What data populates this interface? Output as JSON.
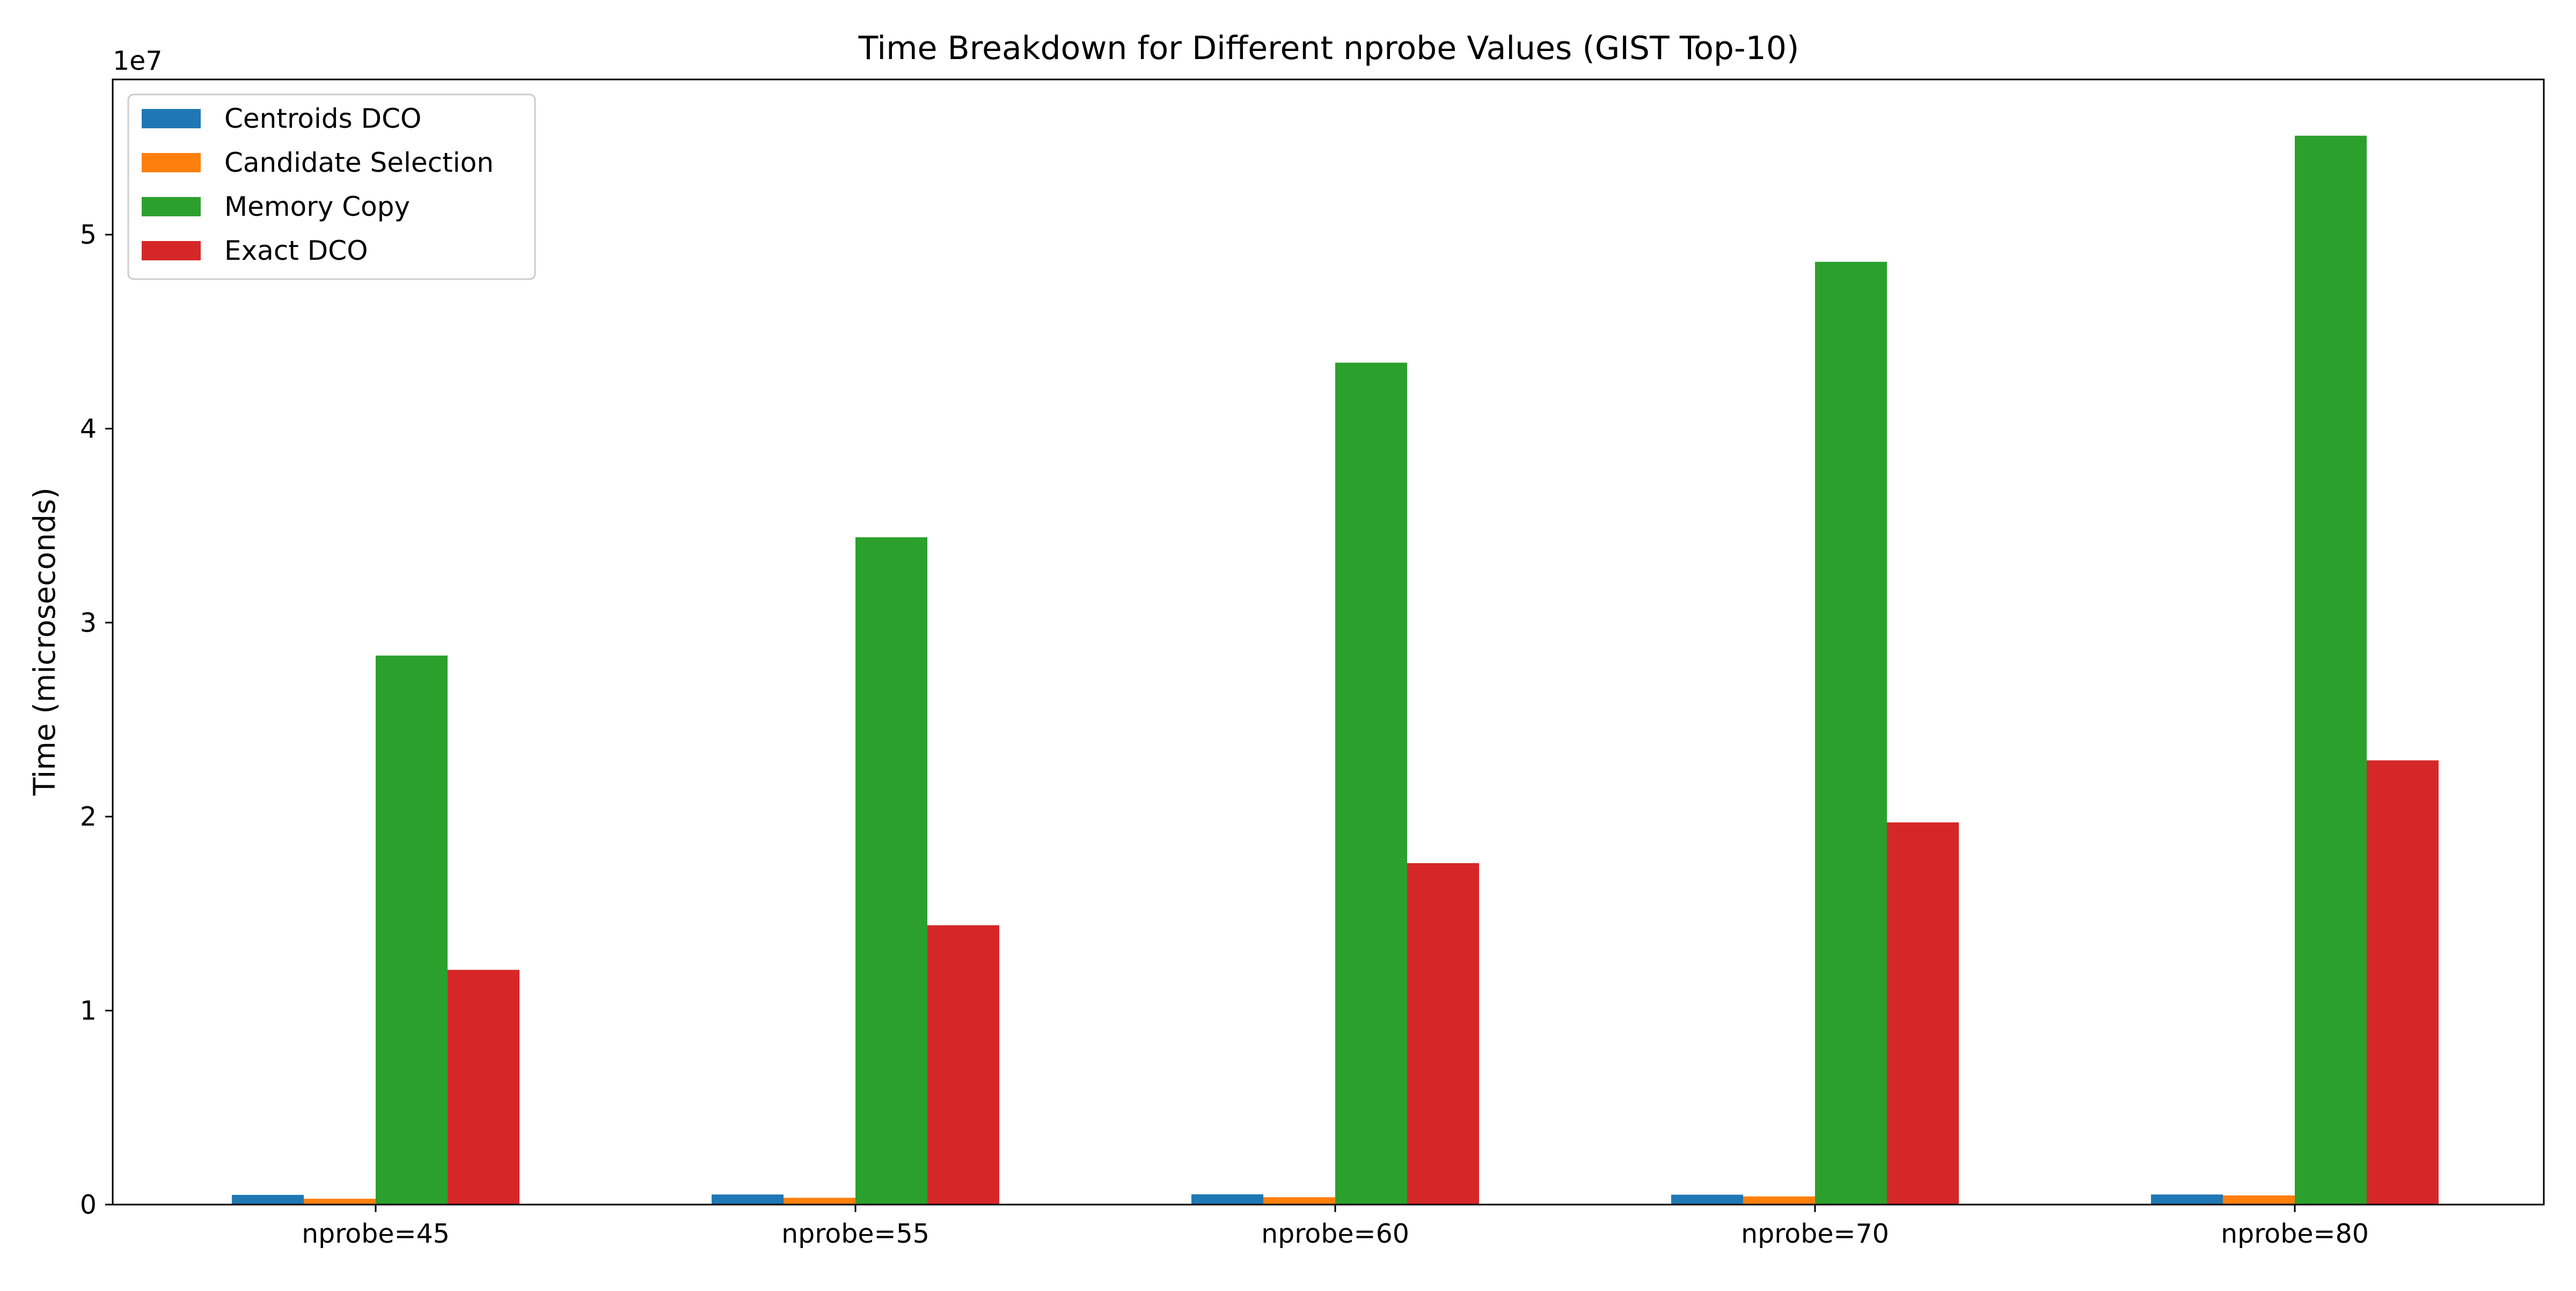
{
  "chart_data": {
    "type": "bar",
    "title": "Time Breakdown for Different nprobe Values (GIST Top-10)",
    "xlabel": "",
    "ylabel": "Time (microseconds)",
    "y_scale_label": "1e7",
    "y_multiplier": 10000000,
    "ylim": [
      0,
      58000000
    ],
    "yticks": [
      0,
      10000000,
      20000000,
      30000000,
      40000000,
      50000000
    ],
    "ytick_labels": [
      "0",
      "1",
      "2",
      "3",
      "4",
      "5"
    ],
    "categories": [
      "nprobe=45",
      "nprobe=55",
      "nprobe=60",
      "nprobe=70",
      "nprobe=80"
    ],
    "series": [
      {
        "name": "Centroids DCO",
        "color": "#1f77b4",
        "values": [
          500000,
          520000,
          530000,
          510000,
          520000
        ]
      },
      {
        "name": "Candidate Selection",
        "color": "#ff7f0e",
        "values": [
          300000,
          350000,
          380000,
          420000,
          470000
        ]
      },
      {
        "name": "Memory Copy",
        "color": "#2ca02c",
        "values": [
          28300000,
          34400000,
          43400000,
          48600000,
          55100000
        ]
      },
      {
        "name": "Exact DCO",
        "color": "#d62728",
        "values": [
          12100000,
          14400000,
          17600000,
          19700000,
          22900000
        ]
      }
    ],
    "grid": false,
    "legend_position": "top-left"
  }
}
